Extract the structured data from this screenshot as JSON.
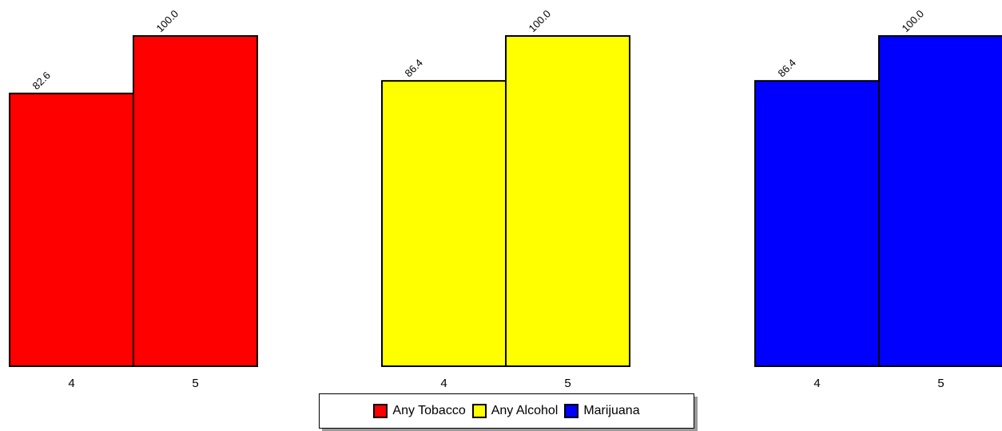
{
  "chart_data": [
    {
      "type": "bar",
      "categories": [
        "4",
        "5"
      ],
      "series": [
        {
          "name": "Any Tobacco",
          "values": [
            82.6,
            100.0
          ]
        }
      ],
      "data_labels": [
        "82.6",
        "100.0"
      ],
      "color": "#ff0000",
      "ylim": [
        0,
        100
      ]
    },
    {
      "type": "bar",
      "categories": [
        "4",
        "5"
      ],
      "series": [
        {
          "name": "Any Alcohol",
          "values": [
            86.4,
            100.0
          ]
        }
      ],
      "data_labels": [
        "86.4",
        "100.0"
      ],
      "color": "#ffff00",
      "ylim": [
        0,
        100
      ]
    },
    {
      "type": "bar",
      "categories": [
        "4",
        "5"
      ],
      "series": [
        {
          "name": "Marijuana",
          "values": [
            86.4,
            100.0
          ]
        }
      ],
      "data_labels": [
        "86.4",
        "100.0"
      ],
      "color": "#0000ff",
      "ylim": [
        0,
        100
      ]
    }
  ],
  "legend": {
    "placement": "bottom-center",
    "items": [
      {
        "label": "Any Tobacco",
        "color": "#ff0000"
      },
      {
        "label": "Any Alcohol",
        "color": "#ffff00"
      },
      {
        "label": "Marijuana",
        "color": "#0000ff"
      }
    ]
  }
}
